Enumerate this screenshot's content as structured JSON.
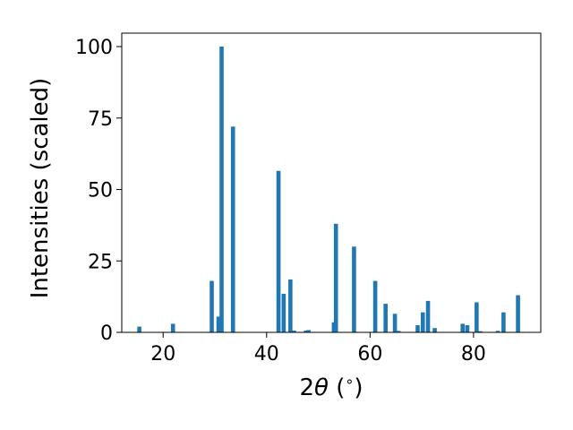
{
  "chart_data": {
    "type": "bar",
    "xlabel_prefix": "2",
    "xlabel_theta": "θ",
    "xlabel_suffix": " (",
    "xlabel_degree": "∘",
    "xlabel_close": ")",
    "ylabel": "Intensities (scaled)",
    "xlim": [
      12.0,
      93.0
    ],
    "ylim": [
      0,
      100
    ],
    "x_ticks": [
      20,
      40,
      60,
      80
    ],
    "y_ticks": [
      0,
      25,
      50,
      75,
      100
    ],
    "bar_color": "#1f77b4",
    "bars": [
      {
        "x": 15.4,
        "y": 2.0
      },
      {
        "x": 21.9,
        "y": 3.0
      },
      {
        "x": 29.4,
        "y": 18.0
      },
      {
        "x": 30.7,
        "y": 5.5
      },
      {
        "x": 31.3,
        "y": 100.0
      },
      {
        "x": 33.5,
        "y": 72.0
      },
      {
        "x": 42.3,
        "y": 56.5
      },
      {
        "x": 43.3,
        "y": 13.5
      },
      {
        "x": 44.6,
        "y": 18.5
      },
      {
        "x": 45.3,
        "y": 0.6
      },
      {
        "x": 47.6,
        "y": 0.6
      },
      {
        "x": 48.1,
        "y": 0.8
      },
      {
        "x": 53.0,
        "y": 3.5
      },
      {
        "x": 53.4,
        "y": 38.0
      },
      {
        "x": 56.9,
        "y": 30.0
      },
      {
        "x": 61.0,
        "y": 18.0
      },
      {
        "x": 63.0,
        "y": 10.0
      },
      {
        "x": 64.8,
        "y": 6.5
      },
      {
        "x": 65.5,
        "y": 0.5
      },
      {
        "x": 69.2,
        "y": 2.5
      },
      {
        "x": 70.2,
        "y": 7.0
      },
      {
        "x": 71.2,
        "y": 11.0
      },
      {
        "x": 72.5,
        "y": 1.5
      },
      {
        "x": 77.9,
        "y": 3.0
      },
      {
        "x": 78.8,
        "y": 2.5
      },
      {
        "x": 80.6,
        "y": 10.5
      },
      {
        "x": 81.3,
        "y": 0.4
      },
      {
        "x": 84.7,
        "y": 0.5
      },
      {
        "x": 85.8,
        "y": 7.0
      },
      {
        "x": 88.6,
        "y": 13.0
      }
    ]
  }
}
